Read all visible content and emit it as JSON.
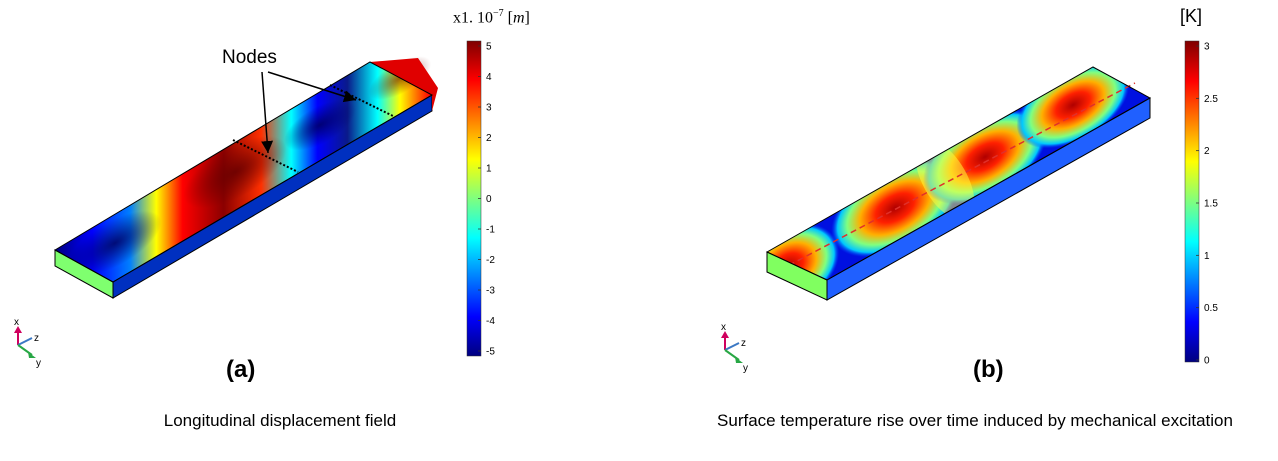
{
  "panels": [
    {
      "id": "a",
      "label": "(a)",
      "caption": "Longitudinal displacement field",
      "annotation": "Nodes",
      "colorbar": {
        "unit_prefix": "x1. 10",
        "unit_exp": "−7",
        "unit": "m",
        "ticks": [
          "5",
          "4",
          "3",
          "2",
          "1",
          "0",
          "-1",
          "-2",
          "-3",
          "-4",
          "-5"
        ],
        "min": -5,
        "max": 5
      },
      "axes": {
        "x": "x",
        "z": "z",
        "y": "y"
      }
    },
    {
      "id": "b",
      "label": "(b)",
      "caption": "Surface temperature rise over time induced by mechanical excitation",
      "colorbar": {
        "unit": "[K]",
        "ticks": [
          "3",
          "2.5",
          "2",
          "1.5",
          "1",
          "0.5",
          "0"
        ],
        "min": 0,
        "max": 3
      },
      "axes": {
        "x": "x",
        "z": "z",
        "y": "y"
      }
    }
  ],
  "colors": {
    "jet": [
      "#00007f",
      "#0000ff",
      "#007fff",
      "#00ffff",
      "#7fff7f",
      "#ffff00",
      "#ff7f00",
      "#ff0000",
      "#7f0000"
    ],
    "axis_x": "#d0005e",
    "axis_y": "#28a745",
    "axis_z": "#3b78c4",
    "node_line": "#000000",
    "center_dash": "#e0302a"
  }
}
